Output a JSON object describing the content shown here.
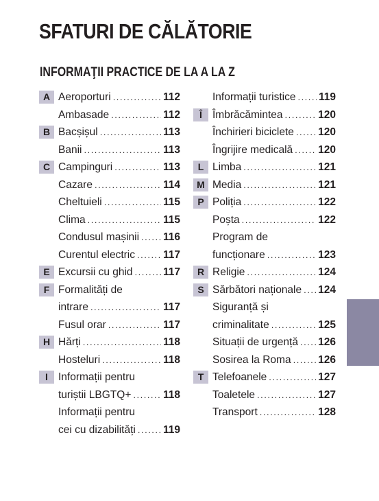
{
  "page_title": "SFATURI DE CĂLĂTORIE",
  "section_title": "INFORMAŢII PRACTICE DE LA A LA Z",
  "colors": {
    "letter_box": "#c7c4d4",
    "side_tab": "#8b88a3",
    "text": "#231f20"
  },
  "columns": [
    [
      {
        "letter": "A",
        "name": "Aeroporturi",
        "page": "112"
      },
      {
        "letter": "",
        "name": "Ambasade",
        "page": "112"
      },
      {
        "letter": "B",
        "name": "Bacșișul",
        "page": "113"
      },
      {
        "letter": "",
        "name": "Banii",
        "page": "113"
      },
      {
        "letter": "C",
        "name": "Campinguri",
        "page": "113"
      },
      {
        "letter": "",
        "name": "Cazare",
        "page": "114"
      },
      {
        "letter": "",
        "name": "Cheltuieli",
        "page": "115"
      },
      {
        "letter": "",
        "name": "Clima",
        "page": "115"
      },
      {
        "letter": "",
        "name": "Condusul mașinii",
        "page": "116"
      },
      {
        "letter": "",
        "name": "Curentul electric",
        "page": "117"
      },
      {
        "letter": "E",
        "name": "Excursii cu ghid",
        "page": "117"
      },
      {
        "letter": "F",
        "name": "Formalități de",
        "page": ""
      },
      {
        "letter": "",
        "name": "intrare",
        "page": "117"
      },
      {
        "letter": "",
        "name": "Fusul orar",
        "page": "117"
      },
      {
        "letter": "H",
        "name": "Hărți",
        "page": "118"
      },
      {
        "letter": "",
        "name": "Hosteluri",
        "page": "118"
      },
      {
        "letter": "I",
        "name": "Informații pentru",
        "page": ""
      },
      {
        "letter": "",
        "name": "turiștii LBGTQ+",
        "page": "118"
      },
      {
        "letter": "",
        "name": "Informații pentru",
        "page": ""
      },
      {
        "letter": "",
        "name": "cei cu dizabilități",
        "page": "119"
      }
    ],
    [
      {
        "letter": "",
        "name": "Informații turistice",
        "page": "119"
      },
      {
        "letter": "Î",
        "name": "Îmbrăcămintea",
        "page": "120"
      },
      {
        "letter": "",
        "name": "Închirieri biciclete",
        "page": "120"
      },
      {
        "letter": "",
        "name": "Îngrijire medicală",
        "page": "120"
      },
      {
        "letter": "L",
        "name": "Limba",
        "page": "121"
      },
      {
        "letter": "M",
        "name": "Media",
        "page": "121"
      },
      {
        "letter": "P",
        "name": "Poliția",
        "page": "122"
      },
      {
        "letter": "",
        "name": "Poșta",
        "page": "122"
      },
      {
        "letter": "",
        "name": "Program de",
        "page": ""
      },
      {
        "letter": "",
        "name": "funcționare",
        "page": "123"
      },
      {
        "letter": "R",
        "name": "Religie",
        "page": "124"
      },
      {
        "letter": "S",
        "name": "Sărbători naționale",
        "page": "124"
      },
      {
        "letter": "",
        "name": "Siguranță și",
        "page": ""
      },
      {
        "letter": "",
        "name": "criminalitate",
        "page": "125"
      },
      {
        "letter": "",
        "name": "Situații de urgență",
        "page": "126"
      },
      {
        "letter": "",
        "name": "Sosirea la Roma",
        "page": "126"
      },
      {
        "letter": "T",
        "name": "Telefoanele",
        "page": "127"
      },
      {
        "letter": "",
        "name": "Toaletele",
        "page": "127"
      },
      {
        "letter": "",
        "name": "Transport",
        "page": "128"
      }
    ]
  ]
}
